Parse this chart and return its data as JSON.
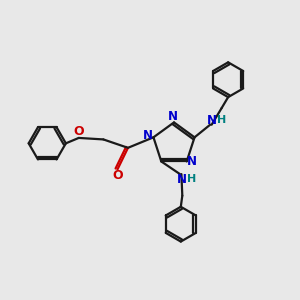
{
  "bg_color": "#e8e8e8",
  "atom_colors": {
    "N": "#0000cc",
    "O": "#cc0000",
    "H": "#008080"
  },
  "bond_color": "#1a1a1a",
  "line_width": 1.6,
  "font_size": 8.5,
  "fig_size": [
    3.0,
    3.0
  ],
  "dpi": 100
}
